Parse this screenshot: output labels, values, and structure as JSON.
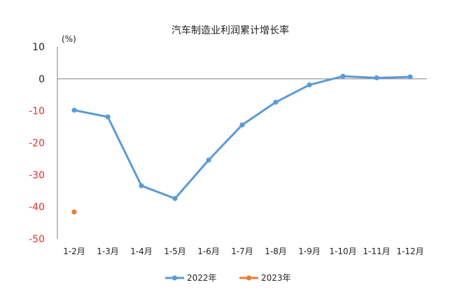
{
  "chart_data": {
    "type": "line",
    "title": "汽车制造业利润累计增长率",
    "unit_label": "(%)",
    "categories": [
      "1-2月",
      "1-3月",
      "1-4月",
      "1-5月",
      "1-6月",
      "1-7月",
      "1-8月",
      "1-9月",
      "1-10月",
      "1-11月",
      "1-12月"
    ],
    "ylim": [
      -50,
      10
    ],
    "yticks": [
      10,
      0,
      -10,
      -20,
      -30,
      -40,
      -50
    ],
    "grid": false,
    "legend_position": "bottom",
    "series": [
      {
        "name": "2022年",
        "color": "#5B9BD5",
        "values": [
          -9.8,
          -11.9,
          -33.4,
          -37.4,
          -25.4,
          -14.4,
          -7.3,
          -1.9,
          0.8,
          0.3,
          0.6
        ]
      },
      {
        "name": "2023年",
        "color": "#ED7D31",
        "values": [
          -41.6,
          null,
          null,
          null,
          null,
          null,
          null,
          null,
          null,
          null,
          null
        ]
      }
    ],
    "colors": {
      "positive_tick": "#222222",
      "negative_tick": "#E8322B",
      "axis": "#7f7f7f"
    }
  }
}
